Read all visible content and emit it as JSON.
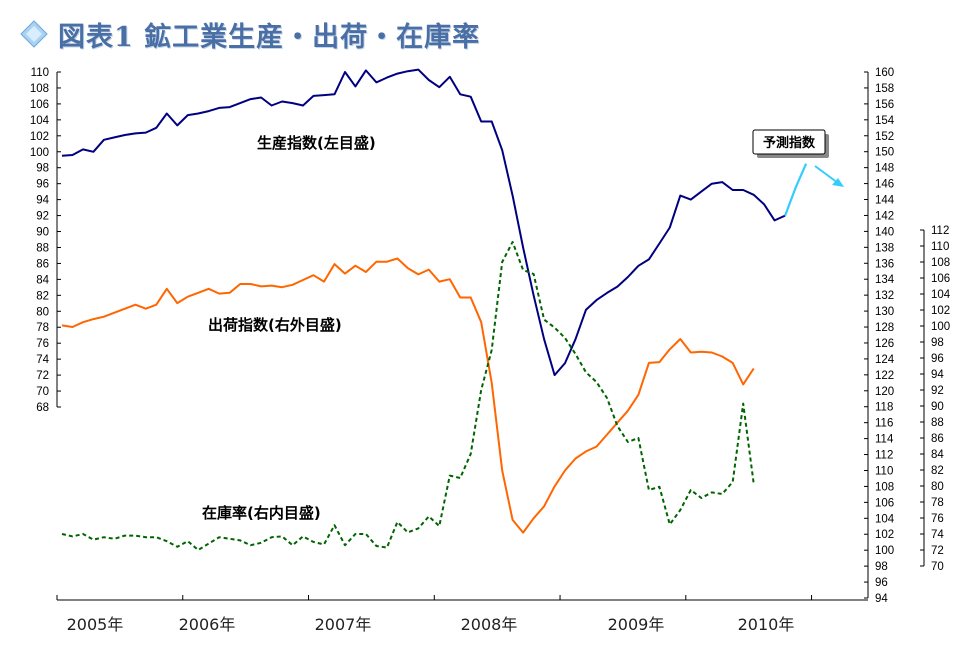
{
  "title": "図表1 鉱工業生産・出荷・在庫率",
  "colors": {
    "production": "#000080",
    "shipment": "#ff6600",
    "inventory_ratio": "#006400",
    "forecast": "#33ccff",
    "title": "#4a6fa5"
  },
  "annotations": {
    "production_label": "生産指数(左目盛)",
    "shipment_label": "出荷指数(右外目盛)",
    "inventory_label": "在庫率(右内目盛)",
    "forecast_box": "予測指数"
  },
  "chart_data": {
    "type": "line",
    "title": "図表1 鉱工業生産・出荷・在庫率",
    "x_start": "2005-01",
    "x_step": "month",
    "x_tick_labels": [
      "2005年",
      "2006年",
      "2007年",
      "2008年",
      "2009年",
      "2010年"
    ],
    "axes": {
      "left": {
        "ylim": [
          68,
          110
        ],
        "tick_step": 2
      },
      "right_inner": {
        "ylim": [
          70,
          112
        ],
        "tick_step": 2
      },
      "right_outer": {
        "ylim": [
          94,
          160
        ],
        "tick_step": 2
      }
    },
    "grid": false,
    "series": [
      {
        "name": "生産指数(左目盛)",
        "axis": "left",
        "style": "solid",
        "values": [
          99.5,
          99.6,
          100.3,
          100.0,
          101.5,
          101.8,
          102.1,
          102.3,
          102.4,
          103.0,
          104.8,
          103.3,
          104.6,
          104.8,
          105.1,
          105.5,
          105.6,
          106.1,
          106.6,
          106.8,
          105.8,
          106.3,
          106.1,
          105.8,
          107.0,
          107.1,
          107.2,
          110.0,
          108.2,
          110.2,
          108.7,
          109.3,
          109.8,
          110.1,
          110.3,
          109.0,
          108.1,
          109.4,
          107.2,
          106.9,
          103.8,
          103.8,
          100.2,
          94.5,
          88.0,
          82.0,
          76.5,
          72.0,
          73.5,
          76.5,
          80.2,
          81.4,
          82.3,
          83.1,
          84.3,
          85.7,
          86.5,
          88.5,
          90.5,
          94.5,
          94.0,
          95.0,
          96.0,
          96.2,
          95.2,
          95.2,
          94.6,
          93.4,
          91.4,
          92.0
        ]
      },
      {
        "name": "出荷指数(右外目盛)",
        "axis": "right_outer",
        "style": "solid",
        "values": [
          128.2,
          128.0,
          128.6,
          129.0,
          129.3,
          129.8,
          130.3,
          130.8,
          130.3,
          130.8,
          132.8,
          131.0,
          131.8,
          132.3,
          132.8,
          132.2,
          132.3,
          133.4,
          133.4,
          133.1,
          133.2,
          133.0,
          133.3,
          133.9,
          134.5,
          133.7,
          135.9,
          134.7,
          135.7,
          134.9,
          136.2,
          136.2,
          136.6,
          135.4,
          134.6,
          135.2,
          133.7,
          134.0,
          131.7,
          131.7,
          128.6,
          121.0,
          110.0,
          103.8,
          102.2,
          104.0,
          105.5,
          108.0,
          110.0,
          111.5,
          112.4,
          113.0,
          114.5,
          116.0,
          117.5,
          119.5,
          123.5,
          123.6,
          125.2,
          126.5,
          124.8,
          124.9,
          124.8,
          124.3,
          123.5,
          120.8,
          122.8
        ]
      },
      {
        "name": "在庫率(右内目盛)",
        "axis": "right_inner",
        "style": "dashed",
        "values": [
          74.0,
          73.7,
          74.0,
          73.3,
          73.6,
          73.4,
          73.8,
          73.8,
          73.6,
          73.6,
          73.1,
          72.4,
          73.1,
          72.0,
          72.8,
          73.6,
          73.4,
          73.2,
          72.6,
          72.9,
          73.6,
          73.7,
          72.6,
          73.7,
          73.0,
          72.7,
          75.1,
          72.6,
          74.0,
          74.0,
          72.5,
          72.3,
          75.5,
          74.2,
          74.7,
          76.2,
          75.0,
          81.3,
          81.0,
          84.0,
          92.0,
          97.0,
          108.0,
          110.5,
          107.0,
          106.5,
          100.8,
          99.8,
          98.5,
          96.5,
          94.2,
          93.0,
          91.0,
          87.5,
          85.5,
          86.0,
          79.5,
          79.9,
          75.2,
          77.0,
          79.5,
          78.5,
          79.2,
          79.0,
          80.5,
          90.3,
          80.3
        ]
      },
      {
        "name": "予測指数",
        "axis": "left",
        "style": "solid",
        "values": [
          92.0,
          95.5,
          98.5
        ]
      }
    ]
  }
}
